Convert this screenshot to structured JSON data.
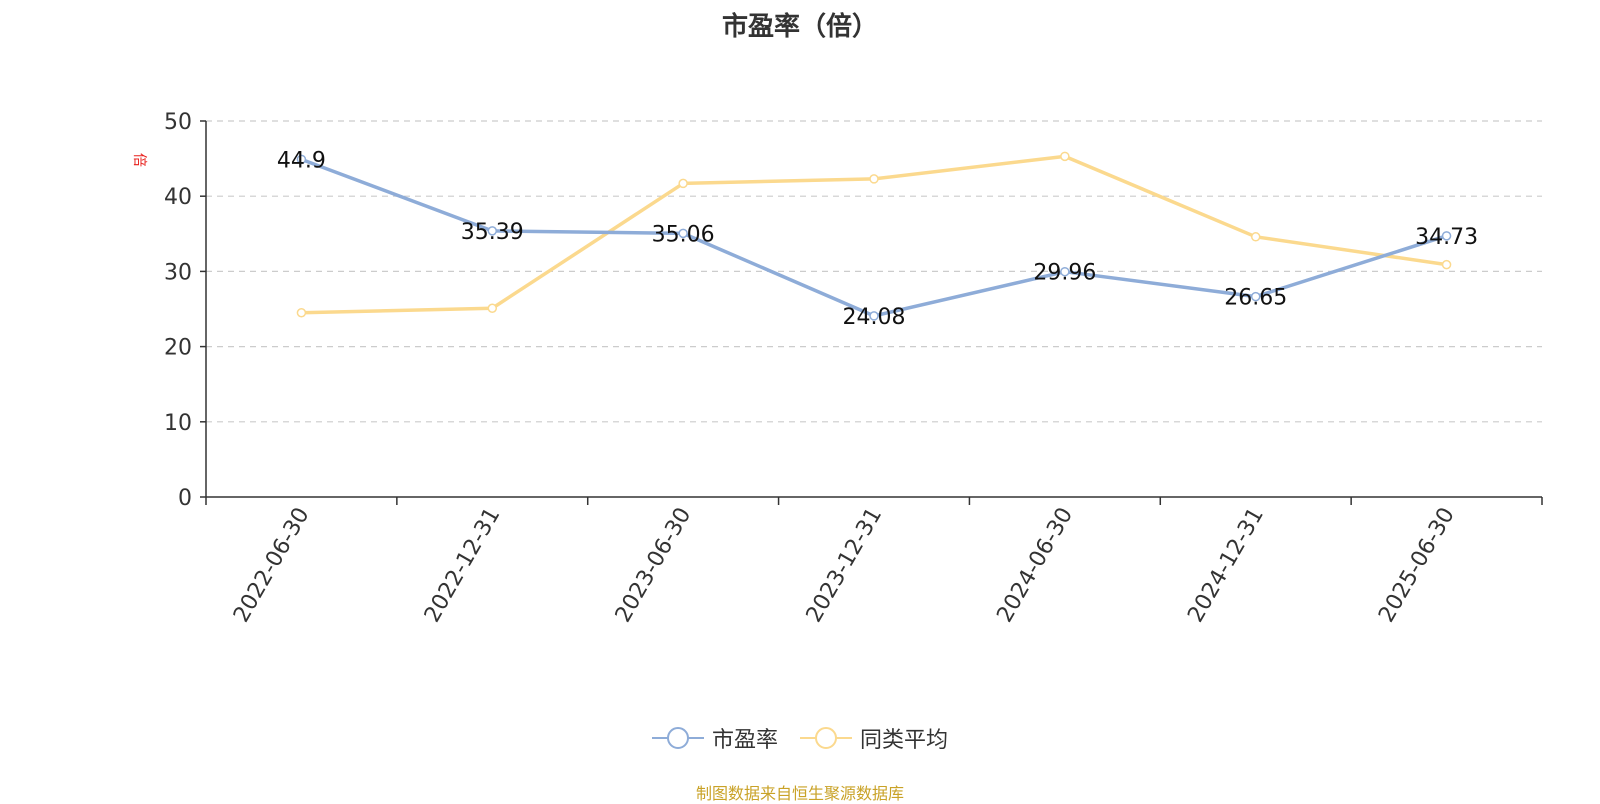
{
  "chart_data": {
    "type": "line",
    "title": "市盈率（倍）",
    "unit_label": "倍",
    "categories": [
      "2022-06-30",
      "2022-12-31",
      "2023-06-30",
      "2023-12-31",
      "2024-06-30",
      "2024-12-31",
      "2025-06-30"
    ],
    "series": [
      {
        "name": "市盈率",
        "color": "#8eacd8",
        "values": [
          44.9,
          35.39,
          35.06,
          24.08,
          29.96,
          26.65,
          34.73
        ],
        "show_labels": true
      },
      {
        "name": "同类平均",
        "color": "#fbd98e",
        "values": [
          24.5,
          25.1,
          41.7,
          42.3,
          45.3,
          34.6,
          30.9
        ],
        "show_labels": false
      }
    ],
    "ylim": [
      0,
      50
    ],
    "yticks": [
      0,
      10,
      20,
      30,
      40,
      50
    ],
    "grid": true,
    "legend_position": "bottom"
  },
  "source_note": "制图数据来自恒生聚源数据库"
}
